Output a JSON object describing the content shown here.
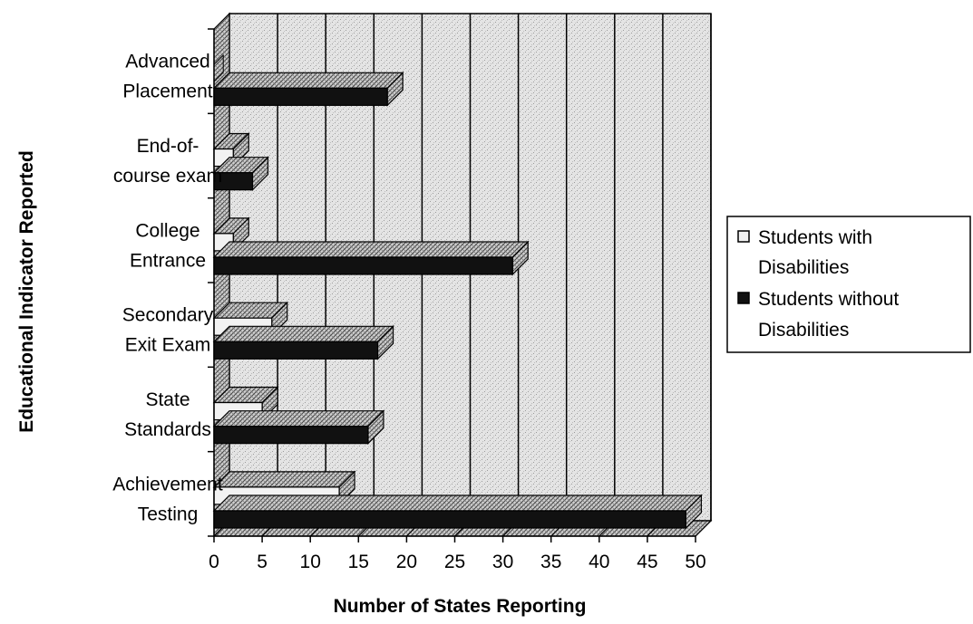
{
  "chart_data": {
    "type": "bar",
    "orientation": "horizontal",
    "three_d": true,
    "categories": [
      [
        "Advanced",
        "Placement"
      ],
      [
        "End-of-",
        "course exam"
      ],
      [
        "College",
        "Entrance"
      ],
      [
        "Secondary",
        "Exit Exam"
      ],
      [
        "State",
        "Standards"
      ],
      [
        "Achievement",
        "Testing"
      ]
    ],
    "series": [
      {
        "name": "Students with Disabilities",
        "values": [
          0,
          2,
          2,
          6,
          5,
          13
        ],
        "color": "#f2f2f2"
      },
      {
        "name": "Students without Disabilities",
        "values": [
          18,
          4,
          31,
          17,
          16,
          49
        ],
        "color": "#111111"
      }
    ],
    "xlabel": "Number of States Reporting",
    "ylabel": "Educational Indicator Reported",
    "xlim": [
      0,
      50
    ],
    "xticks": [
      "0",
      "5",
      "10",
      "15",
      "20",
      "25",
      "30",
      "35",
      "40",
      "45",
      "50"
    ],
    "grid": true,
    "legend_position": "right"
  }
}
